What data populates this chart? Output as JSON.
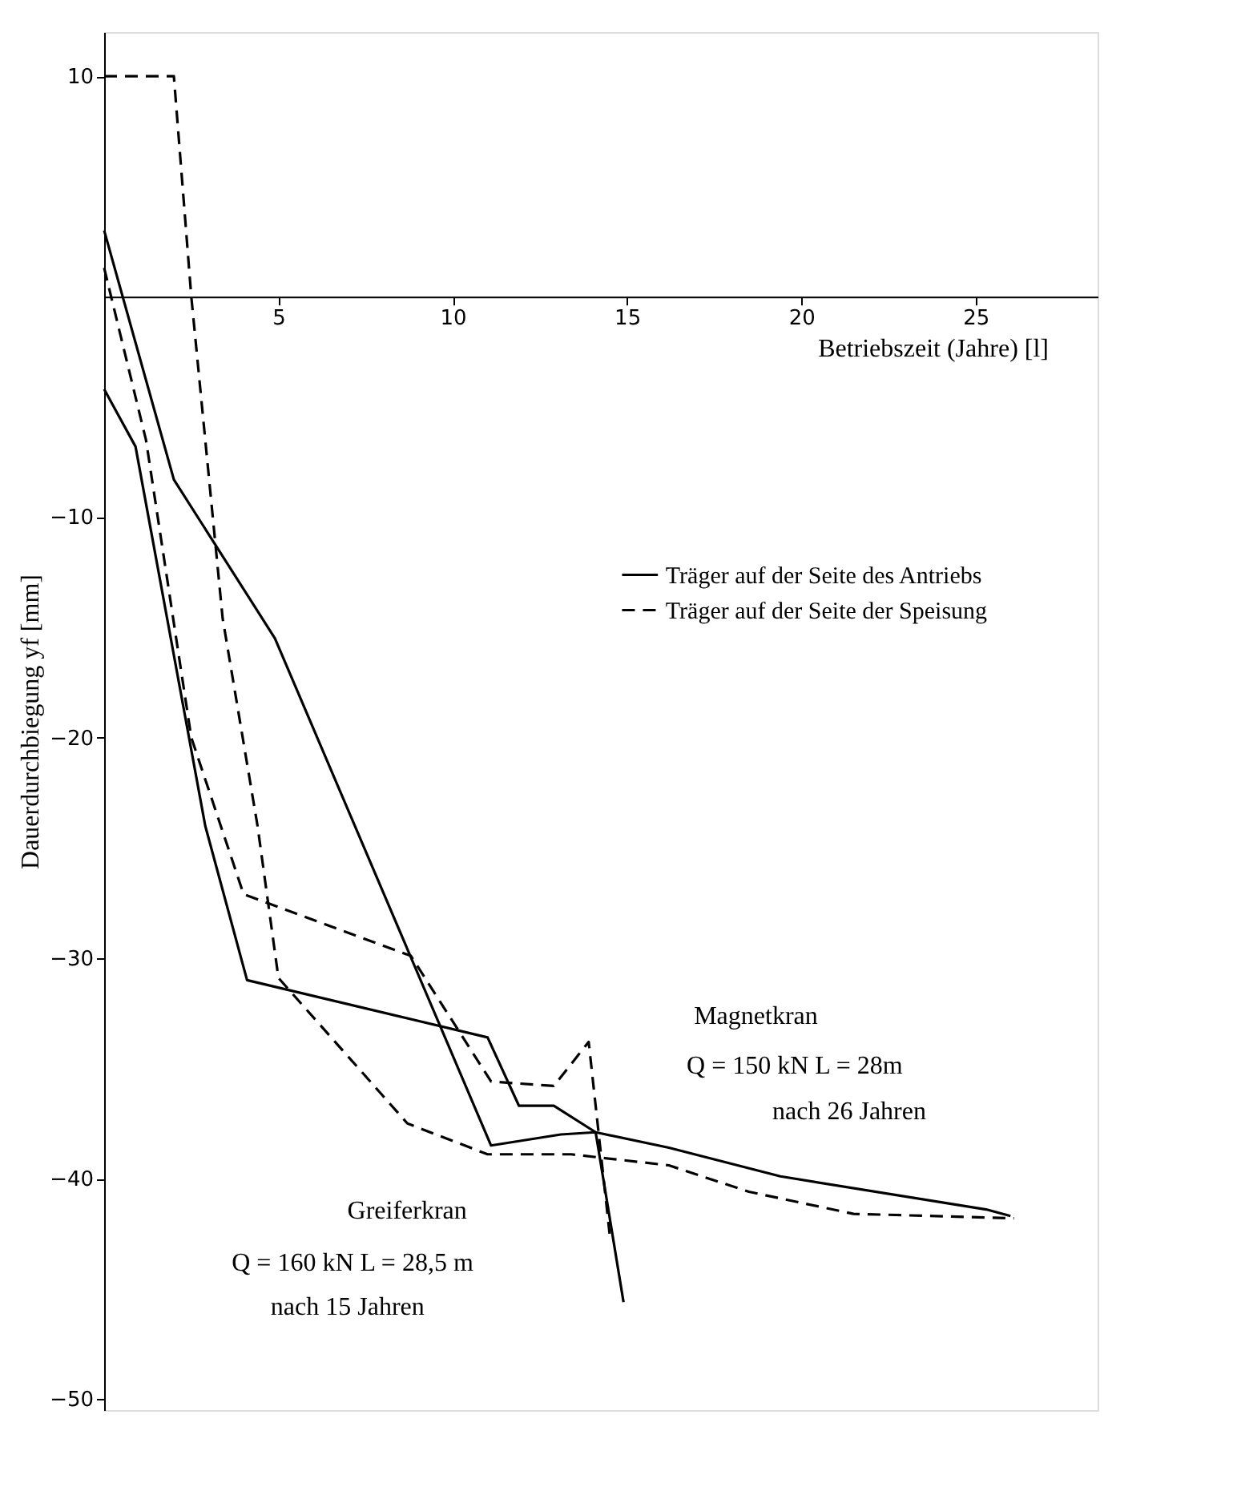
{
  "chart_data": {
    "type": "line",
    "xlabel": "Betriebszeit (Jahre)   [l]",
    "ylabel": "Dauerdurchbiegung  yf  [mm]",
    "xlim": [
      0,
      28.5
    ],
    "ylim": [
      -50.5,
      12
    ],
    "xticks": [
      5,
      10,
      15,
      20,
      25
    ],
    "yticks": [
      10,
      -10,
      -20,
      -30,
      -40,
      -50
    ],
    "grid": false,
    "legend": "right",
    "marker": "none",
    "series": [
      {
        "name": "Träger auf der Seite des Antriebs",
        "color": "#000000",
        "line_style": "solid",
        "x": [
          0,
          2,
          4.9,
          11.1,
          13.1,
          14.1,
          14.9
        ],
        "values": [
          3,
          -8.3,
          -15.5,
          -38.5,
          -38,
          -37.9,
          -45.6
        ]
      },
      {
        "color": "#000000",
        "line_style": "solid",
        "x": [
          0,
          0.9,
          2.9,
          4.1,
          11,
          11.9,
          12.9,
          14.1,
          16.2,
          19.4,
          25.3,
          26
        ],
        "values": [
          -4.2,
          -6.8,
          -24,
          -31,
          -33.6,
          -36.7,
          -36.7,
          -37.9,
          -38.6,
          -39.9,
          -41.4,
          -41.7
        ]
      },
      {
        "name": "Träger auf der Seite der Speisung",
        "color": "#000000",
        "line_style": "dashed",
        "x": [
          0,
          2,
          2.5,
          3.4,
          4.4,
          5,
          8.7,
          11,
          13.4,
          16.2,
          18.5,
          21.5,
          26.1
        ],
        "values": [
          10,
          10,
          0,
          -14.6,
          -24,
          -30.9,
          -37.5,
          -38.9,
          -38.9,
          -39.4,
          -40.6,
          -41.6,
          -41.8
        ]
      },
      {
        "color": "#000000",
        "line_style": "dashed",
        "x": [
          0,
          1.2,
          2.5,
          4,
          8.8,
          11.1,
          12.9,
          13.9,
          14.3,
          14.5
        ],
        "values": [
          1.3,
          -6.5,
          -20,
          -27.1,
          -29.9,
          -35.6,
          -35.8,
          -33.8,
          -39.6,
          -42.5
        ]
      }
    ],
    "annotations": [
      "Greiferkran",
      "Q = 160 kN   L = 28,5 m",
      "nach 15 Jahren",
      "Magnetkran",
      "Q = 150 kN   L = 28m",
      "nach 26 Jahren"
    ]
  }
}
